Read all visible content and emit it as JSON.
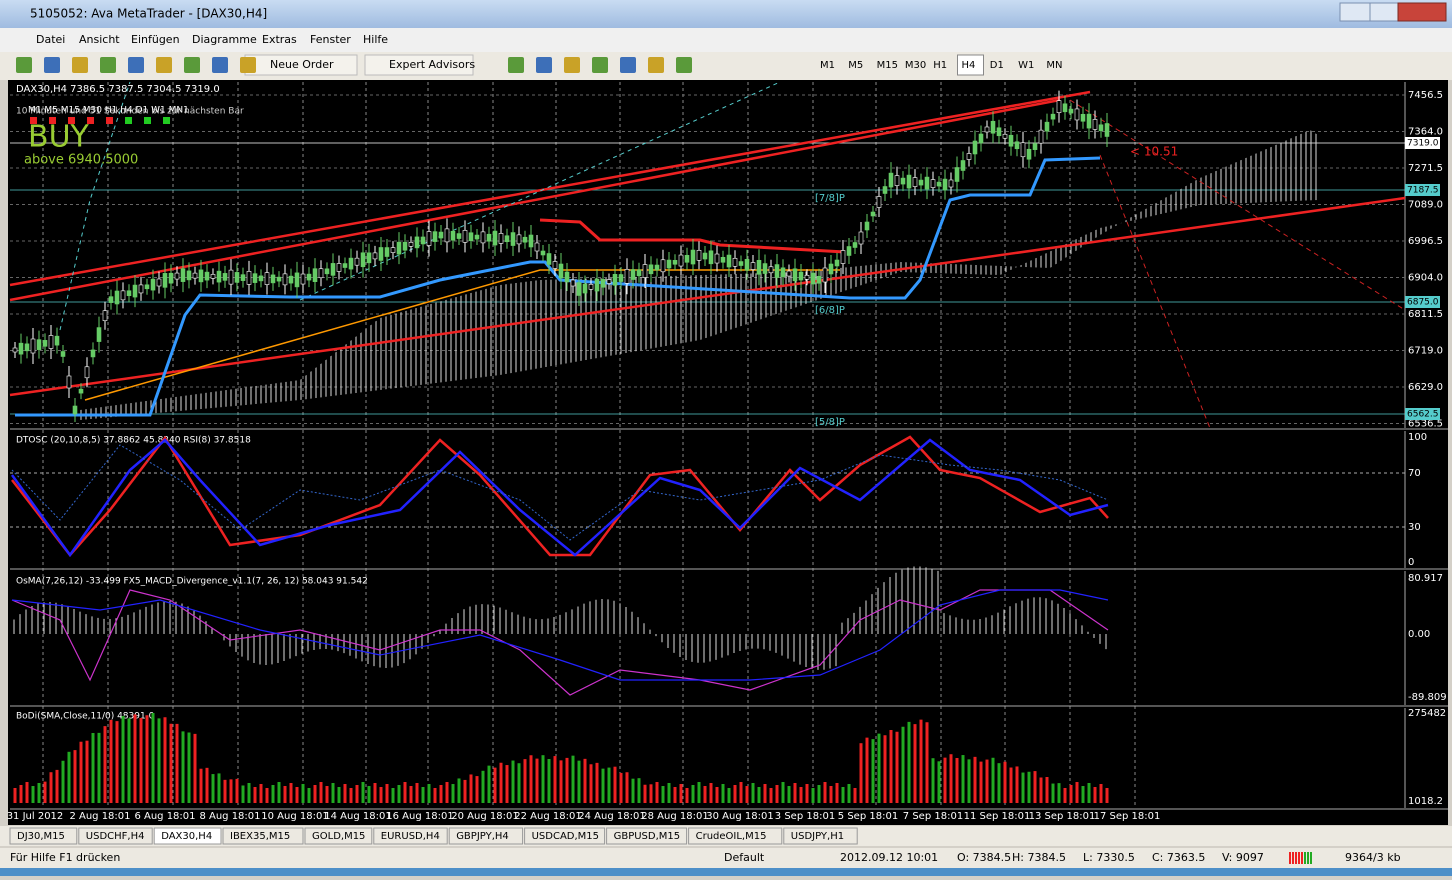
{
  "window": {
    "title": "5105052: Ava MetaTrader - [DAX30,H4]"
  },
  "menu": [
    "Datei",
    "Ansicht",
    "Einfügen",
    "Diagramme",
    "Extras",
    "Fenster",
    "Hilfe"
  ],
  "toolbar": {
    "new_order": "Neue Order",
    "expert_advisors": "Expert Advisors",
    "timeframes": [
      "M1",
      "M5",
      "M15",
      "M30",
      "H1",
      "H4",
      "D1",
      "W1",
      "MN"
    ]
  },
  "chart": {
    "header": "DAX30,H4  7386.5 7387.5 7304.5 7319.0",
    "info": "10 Minuten und 51 Sekunden bis zur nächsten Bar",
    "strip": "M1  M5  M15 M30 H1  H4  D1  W1  MN1",
    "signal": "BUY",
    "signal_note": "above 6940.5000",
    "distance": "< 10.51",
    "levels": [
      "[7/8]P",
      "[6/8]P",
      "[5/8]P"
    ],
    "price_labels": [
      "7456.5",
      "7364.0",
      "7271.5",
      "7089.0",
      "6996.5",
      "6904.0",
      "6811.5",
      "6719.0",
      "6629.0",
      "6536.5"
    ],
    "boxed_labels": [
      "7319.0",
      "7187.5",
      "6875.0",
      "6562.5"
    ],
    "dates": [
      "31 Jul 2012",
      "2 Aug 18:01",
      "6 Aug 18:01",
      "8 Aug 18:01",
      "10 Aug 18:01",
      "14 Aug 18:01",
      "16 Aug 18:01",
      "20 Aug 18:01",
      "22 Aug 18:01",
      "24 Aug 18:01",
      "28 Aug 18:01",
      "30 Aug 18:01",
      "3 Sep 18:01",
      "5 Sep 18:01",
      "7 Sep 18:01",
      "11 Sep 18:01",
      "13 Sep 18:01",
      "17 Sep 18:01"
    ]
  },
  "indicators": [
    {
      "header": "DTOSC (20,10,8,5) 37.8862 45.8340  RSI(8) 37.8518",
      "axis": [
        "100",
        "70",
        "30",
        "0"
      ]
    },
    {
      "header": "OsMA(7,26,12) -33.499  FX5_MACD_Divergence_v1.1(7, 26, 12) 58.043 91.542",
      "axis": [
        "80.917",
        "0.00",
        "-89.809"
      ]
    },
    {
      "header": "BoDi(SMA,Close,11/0) 48391.0",
      "axis": [
        "275482",
        "1018.2"
      ]
    }
  ],
  "tabs": [
    "DJ30,M15",
    "USDCHF,H4",
    "DAX30,H4",
    "IBEX35,M15",
    "GOLD,M15",
    "EURUSD,H4",
    "GBPJPY,H4",
    "USDCAD,M15",
    "GBPUSD,M15",
    "CrudeOIL,M15",
    "USDJPY,H1"
  ],
  "status": [
    "Für Hilfe F1 drücken",
    "Default",
    "2012.09.12 10:01",
    "O: 7384.5",
    "H: 7384.5",
    "L: 7330.5",
    "C: 7363.5",
    "V: 9097",
    "9364/3 kb"
  ]
}
